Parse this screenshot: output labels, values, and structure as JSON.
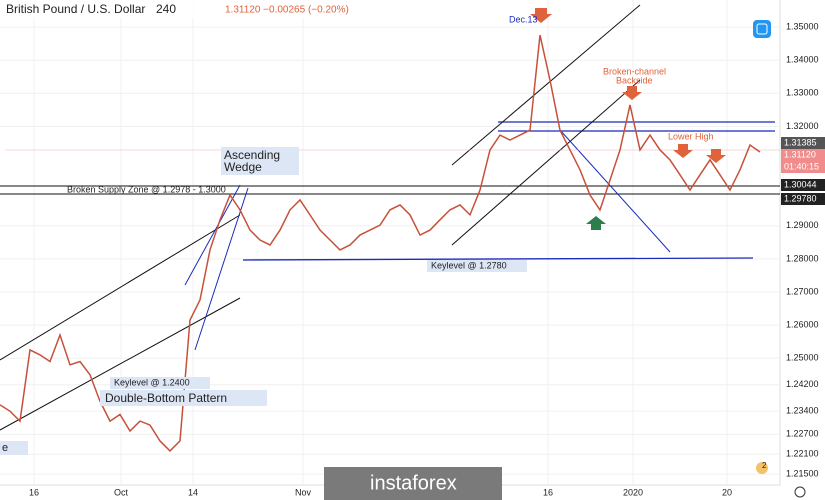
{
  "chart_data": {
    "type": "line",
    "title": "British Pound / U.S. Dollar",
    "interval": "240",
    "quote": "1.31120 −0.00265 (−0.20%)",
    "x": [
      0,
      1,
      2,
      3,
      4,
      5,
      6,
      7,
      8,
      9,
      10,
      11,
      12,
      13,
      14,
      15,
      16,
      17,
      18,
      19,
      20,
      21,
      22,
      23,
      24,
      25,
      26,
      27,
      28,
      29,
      30,
      31,
      32,
      33,
      34,
      35,
      36,
      37,
      38,
      39,
      40,
      41,
      42,
      43,
      44,
      45,
      46,
      47,
      48,
      49,
      50,
      51,
      52,
      53,
      54,
      55,
      56,
      57,
      58,
      59,
      60,
      61,
      62,
      63,
      64,
      65,
      66,
      67,
      68,
      69,
      70,
      71,
      72,
      73,
      74,
      75,
      76
    ],
    "series": [
      {
        "name": "GBPUSD",
        "color": "#c8503a",
        "values": [
          1.2359,
          1.234,
          1.231,
          1.2525,
          1.251,
          1.249,
          1.257,
          1.248,
          1.249,
          1.245,
          1.237,
          1.231,
          1.233,
          1.228,
          1.231,
          1.2298,
          1.225,
          1.222,
          1.225,
          1.2615,
          1.2676,
          1.2827,
          1.2918,
          1.2993,
          1.2948,
          1.2887,
          1.2857,
          1.2842,
          1.2887,
          1.2948,
          1.2978,
          1.2933,
          1.2887,
          1.2857,
          1.2827,
          1.2842,
          1.2872,
          1.2887,
          1.2902,
          1.2948,
          1.2963,
          1.2933,
          1.2872,
          1.2887,
          1.2918,
          1.2948,
          1.2963,
          1.2933,
          1.3008,
          1.3129,
          1.3174,
          1.3159,
          1.3174,
          1.3189,
          1.3476,
          1.334,
          1.3189,
          1.3129,
          1.3069,
          1.2993,
          1.2948,
          1.3038,
          1.3129,
          1.3265,
          1.3129,
          1.3174,
          1.3129,
          1.3099,
          1.3054,
          1.3008,
          1.3054,
          1.3099,
          1.3054,
          1.3008,
          1.3069,
          1.3144,
          1.3123
        ]
      }
    ],
    "xlim": [
      0,
      78
    ],
    "xticks": [
      {
        "value": 3.4,
        "label": "16"
      },
      {
        "value": 12.1,
        "label": "Oct"
      },
      {
        "value": 19.3,
        "label": "14"
      },
      {
        "value": 30.3,
        "label": "Nov"
      },
      {
        "value": 54.8,
        "label": "16"
      },
      {
        "value": 63.3,
        "label": "2020"
      },
      {
        "value": 72.7,
        "label": "20"
      }
    ],
    "ylim": [
      1.2117,
      1.3582
    ],
    "yticks": [
      {
        "value": 1.35,
        "label": "1.35000"
      },
      {
        "value": 1.34,
        "label": "1.34000"
      },
      {
        "value": 1.33,
        "label": "1.33000"
      },
      {
        "value": 1.32,
        "label": "1.32000"
      },
      {
        "value": 1.29,
        "label": "1.29000"
      },
      {
        "value": 1.28,
        "label": "1.28000"
      },
      {
        "value": 1.27,
        "label": "1.27000"
      },
      {
        "value": 1.26,
        "label": "1.26000"
      },
      {
        "value": 1.25,
        "label": "1.25000"
      },
      {
        "value": 1.242,
        "label": "1.24200"
      },
      {
        "value": 1.234,
        "label": "1.23400"
      },
      {
        "value": 1.227,
        "label": "1.22700"
      },
      {
        "value": 1.221,
        "label": "1.22100"
      },
      {
        "value": 1.215,
        "label": "1.21500"
      }
    ],
    "price_labels": [
      "1.31385",
      "1.31120",
      "01:40:15",
      "1.30044",
      "1.29780"
    ],
    "annotations": [
      "Dec.13",
      "Broken-channel",
      "Backside",
      "Lower High",
      "Ascending",
      "Wedge",
      "Broken Supply Zone @ 1.2978 - 1.3000",
      "Keylevel @ 1.2780",
      "Keylevel @ 1.2400",
      "Double-Bottom Pattern",
      "e"
    ],
    "watermark": "instaforex",
    "badge": "2"
  }
}
